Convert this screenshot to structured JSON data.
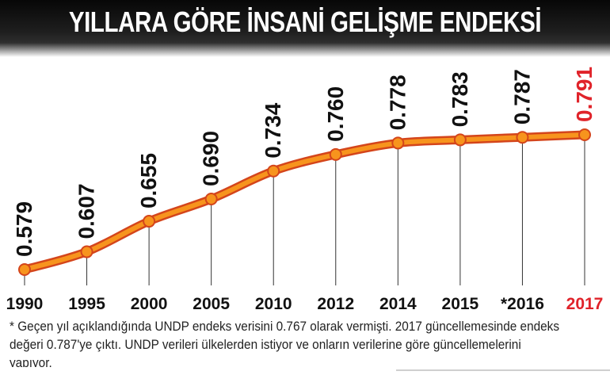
{
  "title": "YILLARA GÖRE İNSANİ GELİŞME ENDEKSİ",
  "footnote": "* Geçen yıl açıklandığında UNDP endeks verisini 0.767 olarak vermişti. 2017 güncellemesinde endeks değeri 0.787'ye çıktı. UNDP verileri ülkelerden istiyor ve onların verilerine göre güncellemelerini yapıyor.",
  "colors": {
    "line": "#f7941d",
    "line_outline": "#d4451b",
    "highlight": "#e0232a",
    "label": "#111111",
    "gridline": "#333333"
  },
  "chart_data": {
    "type": "line",
    "title": "YILLARA GÖRE İNSANİ GELİŞME ENDEKSİ",
    "xlabel": "",
    "ylabel": "",
    "categories": [
      "1990",
      "1995",
      "2000",
      "2005",
      "2010",
      "2012",
      "2014",
      "2015",
      "*2016",
      "2017"
    ],
    "values": [
      0.579,
      0.607,
      0.655,
      0.69,
      0.734,
      0.76,
      0.778,
      0.783,
      0.787,
      0.791
    ],
    "data_labels": [
      "0.579",
      "0.607",
      "0.655",
      "0.690",
      "0.734",
      "0.760",
      "0.778",
      "0.783",
      "0.787",
      "0.791"
    ],
    "highlight_index": 9,
    "ylim": [
      0.55,
      0.8
    ],
    "grid": false
  }
}
